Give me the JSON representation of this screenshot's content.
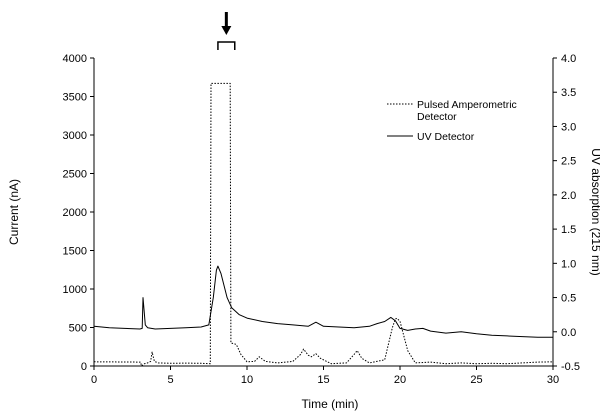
{
  "chart_data": {
    "type": "line",
    "xlabel": "Time (min)",
    "ylabel_left": "Current (nA)",
    "ylabel_right": "UV absorption (215 nm)",
    "xlim": [
      0,
      30
    ],
    "ylim_left": [
      0,
      4000
    ],
    "ylim_right": [
      -0.5,
      4.0
    ],
    "x_ticks": [
      "0",
      "5",
      "10",
      "15",
      "20",
      "25",
      "30"
    ],
    "y_left_ticks": [
      "0",
      "500",
      "1000",
      "1500",
      "2000",
      "2500",
      "3000",
      "3500",
      "4000"
    ],
    "y_right_ticks": [
      "-0.5",
      "0.0",
      "0.5",
      "1.0",
      "1.5",
      "2.0",
      "2.5",
      "3.0",
      "3.5",
      "4.0"
    ],
    "grid": false,
    "legend_position": "top-right",
    "annotation": {
      "type": "arrow-with-bracket",
      "x_range": [
        8.1,
        9.2
      ]
    },
    "series": [
      {
        "name": "Pulsed Amperometric Detector",
        "axis": "left",
        "line_style": "dotted",
        "x": [
          0,
          3.05,
          3.1,
          3.3,
          3.5,
          3.7,
          3.8,
          3.95,
          4.2,
          5,
          6,
          7,
          7.6,
          7.65,
          8.9,
          8.95,
          9.3,
          9.6,
          10,
          10.5,
          10.8,
          11.2,
          12,
          13,
          13.5,
          13.7,
          14,
          14.2,
          14.5,
          14.8,
          15.5,
          16.5,
          17,
          17.2,
          17.5,
          18,
          19,
          19.5,
          19.7,
          19.8,
          20,
          20.5,
          21,
          22,
          23,
          24,
          25,
          26,
          27,
          28,
          29,
          30
        ],
        "y": [
          55,
          50,
          0,
          30,
          40,
          60,
          180,
          60,
          40,
          35,
          38,
          35,
          30,
          3670,
          3670,
          300,
          280,
          150,
          55,
          60,
          120,
          60,
          40,
          60,
          150,
          220,
          140,
          120,
          160,
          100,
          30,
          40,
          150,
          200,
          100,
          40,
          80,
          500,
          610,
          620,
          580,
          200,
          40,
          50,
          30,
          40,
          30,
          35,
          30,
          40,
          50,
          55
        ]
      },
      {
        "name": "UV Detector",
        "axis": "right",
        "x": [
          0,
          1,
          2,
          3,
          3.15,
          3.2,
          3.35,
          3.5,
          4,
          5,
          6,
          7,
          7.5,
          7.8,
          8,
          8.1,
          8.3,
          8.7,
          9,
          9.5,
          10,
          11,
          12,
          13,
          14,
          14.5,
          15,
          16,
          17,
          18,
          18.5,
          19,
          19.4,
          19.7,
          20,
          20.5,
          21,
          21.5,
          22,
          23,
          24,
          25,
          26,
          27,
          28,
          29,
          30
        ],
        "y": [
          0.08,
          0.06,
          0.05,
          0.04,
          0.05,
          0.5,
          0.1,
          0.06,
          0.04,
          0.05,
          0.06,
          0.07,
          0.1,
          0.5,
          0.9,
          0.96,
          0.85,
          0.5,
          0.35,
          0.25,
          0.2,
          0.15,
          0.12,
          0.1,
          0.08,
          0.14,
          0.08,
          0.07,
          0.06,
          0.08,
          0.12,
          0.15,
          0.21,
          0.16,
          0.05,
          0.02,
          0.04,
          0.05,
          0.01,
          -0.02,
          0.0,
          -0.03,
          -0.05,
          -0.06,
          -0.07,
          -0.08,
          -0.08
        ]
      }
    ]
  }
}
